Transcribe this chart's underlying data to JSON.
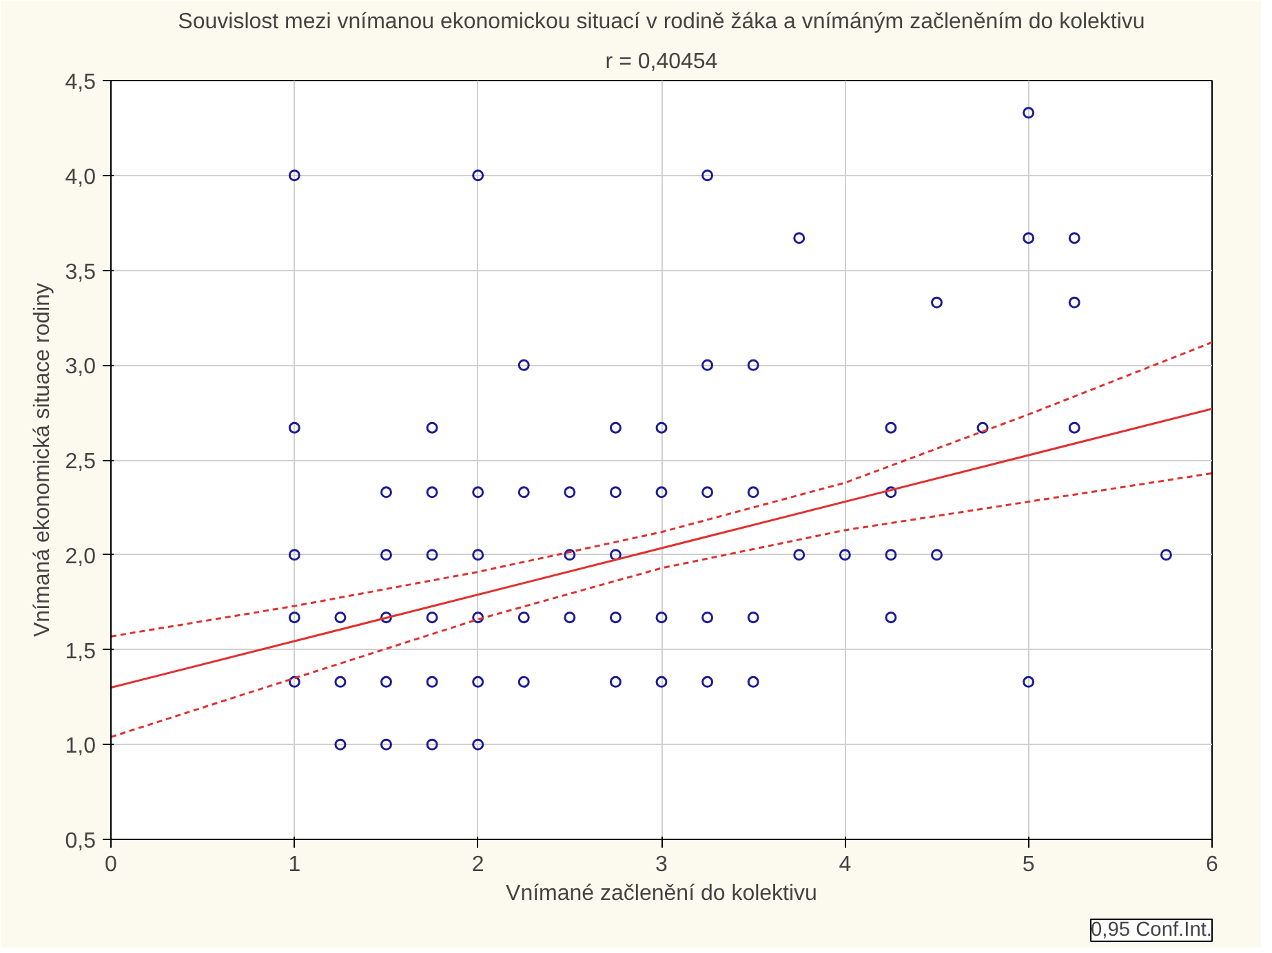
{
  "chart_data": {
    "type": "scatter",
    "title": "Souvislost mezi vnímanou ekonomickou situací v rodině žáka a vnímáným začleněním do kolektivu",
    "subtitle": "r = 0,40454",
    "xlabel": "Vnímané začlenění do kolektivu",
    "ylabel": "Vnímaná ekonomická situace rodiny",
    "annotations": [
      "0,95 Conf.Int."
    ],
    "xlim": [
      0,
      6
    ],
    "ylim": [
      0.5,
      4.5
    ],
    "xticks": [
      0,
      1,
      2,
      3,
      4,
      5,
      6
    ],
    "yticks": [
      {
        "value": 0.5,
        "label": "0,5"
      },
      {
        "value": 1.0,
        "label": "1,0"
      },
      {
        "value": 1.5,
        "label": "1,5"
      },
      {
        "value": 2.0,
        "label": "2,0"
      },
      {
        "value": 2.5,
        "label": "2,5"
      },
      {
        "value": 3.0,
        "label": "3,0"
      },
      {
        "value": 3.5,
        "label": "3,5"
      },
      {
        "value": 4.0,
        "label": "4,0"
      },
      {
        "value": 4.5,
        "label": "4,5"
      }
    ],
    "grid": true,
    "series": [
      {
        "marker": "circle",
        "color": "#1c1c96",
        "x": [
          1,
          1,
          1,
          1,
          1,
          1.25,
          1.25,
          1.25,
          1.5,
          1.5,
          1.5,
          1.5,
          1.5,
          1.75,
          1.75,
          1.75,
          1.75,
          1.75,
          1.75,
          2,
          2,
          2,
          2,
          2,
          2,
          2.25,
          2.25,
          2.25,
          2.25,
          2.5,
          2.5,
          2.5,
          2.75,
          2.75,
          2.75,
          2.75,
          2.75,
          3,
          3,
          3,
          3,
          3.25,
          3.25,
          3.25,
          3.25,
          3.25,
          3.5,
          3.5,
          3.5,
          3.5,
          3.75,
          3.75,
          4,
          4.25,
          4.25,
          4.25,
          4.25,
          4.5,
          4.5,
          4.75,
          5,
          5,
          5,
          5.25,
          5.25,
          5.25,
          5.75
        ],
        "values": [
          4.0,
          2.67,
          2.0,
          1.67,
          1.33,
          1.67,
          1.33,
          1.0,
          2.33,
          2.0,
          1.67,
          1.33,
          1.0,
          2.67,
          2.33,
          2.0,
          1.67,
          1.33,
          1.0,
          4.0,
          2.33,
          2.0,
          1.67,
          1.33,
          1.0,
          3.0,
          2.33,
          1.67,
          1.33,
          2.33,
          2.0,
          1.67,
          2.67,
          2.33,
          2.0,
          1.67,
          1.33,
          2.67,
          2.33,
          1.67,
          1.33,
          4.0,
          3.0,
          2.33,
          1.67,
          1.33,
          3.0,
          2.33,
          1.67,
          1.33,
          3.67,
          2.0,
          2.0,
          2.67,
          2.33,
          2.0,
          1.67,
          3.33,
          2.0,
          2.67,
          4.33,
          3.67,
          1.33,
          3.67,
          3.33,
          2.67,
          2.0
        ]
      },
      {
        "type": "line",
        "line_style": "solid",
        "color": "#e03030",
        "x": [
          0,
          6
        ],
        "values": [
          1.3,
          2.77
        ]
      },
      {
        "type": "line",
        "line_style": "dashed",
        "color": "#e03030",
        "x": [
          0,
          1,
          2,
          3,
          4,
          5,
          6
        ],
        "values": [
          1.57,
          1.73,
          1.91,
          2.12,
          2.38,
          2.74,
          3.12
        ]
      },
      {
        "type": "line",
        "line_style": "dashed",
        "color": "#e03030",
        "x": [
          0,
          1,
          2,
          3,
          4,
          5,
          6
        ],
        "values": [
          1.04,
          1.35,
          1.66,
          1.93,
          2.13,
          2.28,
          2.43
        ]
      }
    ]
  }
}
